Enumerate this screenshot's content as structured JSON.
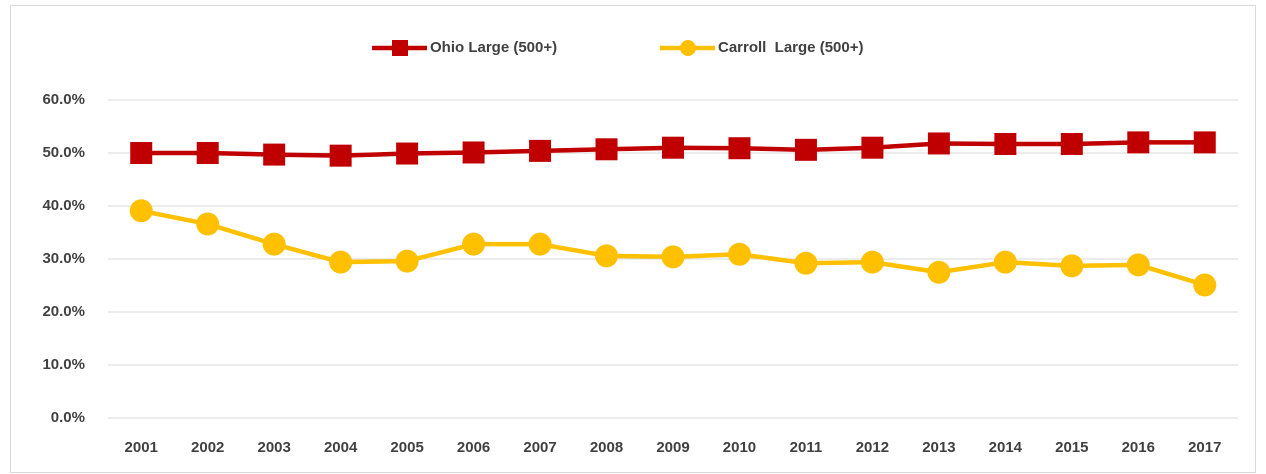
{
  "chart_data": {
    "type": "line",
    "categories": [
      "2001",
      "2002",
      "2003",
      "2004",
      "2005",
      "2006",
      "2007",
      "2008",
      "2009",
      "2010",
      "2011",
      "2012",
      "2013",
      "2014",
      "2015",
      "2016",
      "2017"
    ],
    "series": [
      {
        "name": "Ohio Large (500+)",
        "color": "#c00000",
        "marker": "square",
        "values": [
          50.0,
          50.0,
          49.7,
          49.5,
          49.9,
          50.1,
          50.4,
          50.7,
          51.0,
          50.9,
          50.6,
          51.0,
          51.8,
          51.7,
          51.7,
          52.0,
          52.0
        ]
      },
      {
        "name": "Carroll  Large (500+)",
        "color": "#ffc000",
        "marker": "circle",
        "values": [
          39.1,
          36.6,
          32.8,
          29.4,
          29.6,
          32.8,
          32.8,
          30.6,
          30.4,
          30.9,
          29.2,
          29.4,
          27.5,
          29.4,
          28.7,
          28.9,
          25.1
        ]
      }
    ],
    "ylim": [
      0,
      60
    ],
    "yticks": [
      {
        "value": 0,
        "label": "0.0%"
      },
      {
        "value": 10,
        "label": "10.0%"
      },
      {
        "value": 20,
        "label": "20.0%"
      },
      {
        "value": 30,
        "label": "30.0%"
      },
      {
        "value": 40,
        "label": "40.0%"
      },
      {
        "value": 50,
        "label": "50.0%"
      },
      {
        "value": 60,
        "label": "60.0%"
      }
    ],
    "grid": true,
    "legend": "top"
  }
}
